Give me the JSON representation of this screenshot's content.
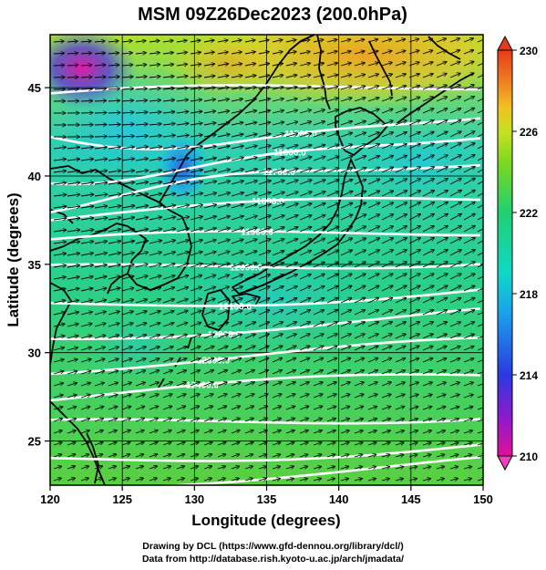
{
  "title": "MSM 09Z26Dec2023 (200.0hPa)",
  "xlabel": "Longitude (degrees)",
  "ylabel": "Latitude  (degrees)",
  "credits": [
    "Drawing by DCL (https://www.gfd-dennou.org/library/dcl/)",
    "Data from http://database.rish.kyoto-u.ac.jp/arch/jmadata/"
  ],
  "axes": {
    "lon_range": [
      120,
      150
    ],
    "lat_range": [
      22.5,
      48
    ],
    "lon_ticks": [
      "120",
      "125",
      "130",
      "135",
      "140",
      "145",
      "150"
    ],
    "lat_ticks": [
      "25",
      "30",
      "35",
      "40",
      "45"
    ]
  },
  "colorbar": {
    "min": 210,
    "max": 230,
    "tick_labels": [
      "230",
      "226",
      "222",
      "218",
      "214",
      "210"
    ],
    "colors": [
      "#e0109a",
      "#8a1ad0",
      "#2a3ae0",
      "#1aa0ec",
      "#10d8c8",
      "#20d070",
      "#7ad820",
      "#c8e020",
      "#f0c020",
      "#f07820",
      "#e83a1a"
    ]
  },
  "contours": {
    "color": "#ffffff",
    "labels": [
      "11500.0",
      "11600.0",
      "11700.0",
      "11800.0",
      "11900.0",
      "12000.0",
      "12100.0",
      "12200.0",
      "12300.0",
      "12400.0"
    ]
  },
  "wind_vectors": {
    "color": "#000000",
    "direction": "westerly"
  },
  "coastline_color": "#000000"
}
